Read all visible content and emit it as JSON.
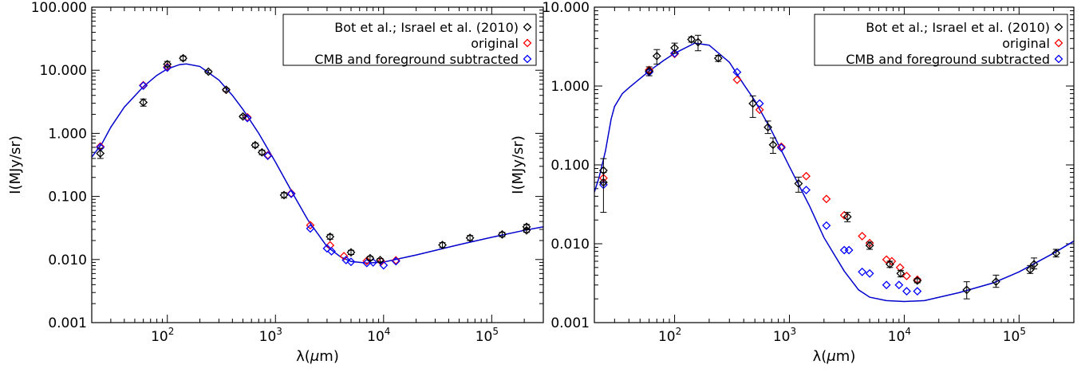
{
  "chart_data": [
    {
      "type": "scatter",
      "xlabel_main": "λ(",
      "xlabel_mu": "μ",
      "xlabel_end": "m)",
      "ylabel": "I(MJy/sr)",
      "xscale": "log",
      "yscale": "log",
      "xlim": [
        20,
        300000
      ],
      "ylim": [
        0.001,
        100
      ],
      "xticks": [
        {
          "base": "10",
          "exp": "2",
          "value": 100
        },
        {
          "base": "10",
          "exp": "3",
          "value": 1000
        },
        {
          "base": "10",
          "exp": "4",
          "value": 10000
        },
        {
          "base": "10",
          "exp": "5",
          "value": 100000
        }
      ],
      "yticks": [
        {
          "label": "0.001",
          "value": 0.001
        },
        {
          "label": "0.010",
          "value": 0.01
        },
        {
          "label": "0.100",
          "value": 0.1
        },
        {
          "label": "1.000",
          "value": 1
        },
        {
          "label": "10.000",
          "value": 10
        },
        {
          "label": "100.000",
          "value": 100
        }
      ],
      "legend_position": "top-right",
      "series": [
        {
          "name": "Bot et al.; Israel et al. (2010)",
          "color": "#000000",
          "marker": "diamond",
          "points": [
            {
              "x": 24,
              "y": 0.48,
              "lo": 0.4,
              "hi": 0.58
            },
            {
              "x": 60,
              "y": 3.1,
              "lo": 2.7,
              "hi": 3.5
            },
            {
              "x": 100,
              "y": 12.5,
              "lo": 11.3,
              "hi": 13.8
            },
            {
              "x": 140,
              "y": 15.5,
              "lo": 14.3,
              "hi": 16.8
            },
            {
              "x": 240,
              "y": 9.5,
              "lo": 9.0,
              "hi": 10.0
            },
            {
              "x": 350,
              "y": 4.9,
              "lo": 4.6,
              "hi": 5.2
            },
            {
              "x": 500,
              "y": 1.85,
              "lo": 1.75,
              "hi": 1.95
            },
            {
              "x": 650,
              "y": 0.65,
              "lo": 0.6,
              "hi": 0.7
            },
            {
              "x": 750,
              "y": 0.5,
              "lo": 0.46,
              "hi": 0.54
            },
            {
              "x": 1200,
              "y": 0.105,
              "lo": 0.095,
              "hi": 0.115
            },
            {
              "x": 3200,
              "y": 0.023,
              "lo": 0.021,
              "hi": 0.025
            },
            {
              "x": 5000,
              "y": 0.013,
              "lo": 0.012,
              "hi": 0.014
            },
            {
              "x": 7500,
              "y": 0.0105,
              "lo": 0.0098,
              "hi": 0.0112
            },
            {
              "x": 9300,
              "y": 0.0098,
              "lo": 0.0092,
              "hi": 0.0104
            },
            {
              "x": 35000,
              "y": 0.017,
              "lo": 0.0155,
              "hi": 0.0185
            },
            {
              "x": 63000,
              "y": 0.022,
              "lo": 0.02,
              "hi": 0.024
            },
            {
              "x": 125000,
              "y": 0.025,
              "lo": 0.023,
              "hi": 0.027
            },
            {
              "x": 210000,
              "y": 0.033,
              "lo": 0.03,
              "hi": 0.036
            },
            {
              "x": 210000,
              "y": 0.029,
              "lo": 0.027,
              "hi": 0.031
            }
          ]
        },
        {
          "name": "original",
          "color": "#ff0000",
          "marker": "diamond",
          "points": [
            {
              "x": 24,
              "y": 0.62
            },
            {
              "x": 60,
              "y": 5.8
            },
            {
              "x": 100,
              "y": 11.3
            },
            {
              "x": 350,
              "y": 4.9
            },
            {
              "x": 550,
              "y": 1.8
            },
            {
              "x": 850,
              "y": 0.45
            },
            {
              "x": 1400,
              "y": 0.112
            },
            {
              "x": 2100,
              "y": 0.035
            },
            {
              "x": 3200,
              "y": 0.0168
            },
            {
              "x": 4300,
              "y": 0.0113
            },
            {
              "x": 7000,
              "y": 0.0095
            },
            {
              "x": 9500,
              "y": 0.0093
            },
            {
              "x": 13000,
              "y": 0.0097
            }
          ]
        },
        {
          "name": "CMB and foreground subtracted",
          "color": "#0000ff",
          "marker": "diamond",
          "points": [
            {
              "x": 24,
              "y": 0.6
            },
            {
              "x": 60,
              "y": 5.7
            },
            {
              "x": 100,
              "y": 11.0
            },
            {
              "x": 550,
              "y": 1.75
            },
            {
              "x": 850,
              "y": 0.44
            },
            {
              "x": 1400,
              "y": 0.11
            },
            {
              "x": 2100,
              "y": 0.031
            },
            {
              "x": 3000,
              "y": 0.015
            },
            {
              "x": 3300,
              "y": 0.0135
            },
            {
              "x": 4500,
              "y": 0.0098
            },
            {
              "x": 5000,
              "y": 0.0092
            },
            {
              "x": 7000,
              "y": 0.0088
            },
            {
              "x": 8000,
              "y": 0.009
            },
            {
              "x": 10000,
              "y": 0.0081
            },
            {
              "x": 13000,
              "y": 0.0094
            }
          ]
        }
      ],
      "model_curve": {
        "color": "#0000cc",
        "points": [
          {
            "x": 20,
            "y": 0.42
          },
          {
            "x": 25,
            "y": 0.7
          },
          {
            "x": 30,
            "y": 1.25
          },
          {
            "x": 40,
            "y": 2.6
          },
          {
            "x": 60,
            "y": 5.5
          },
          {
            "x": 80,
            "y": 8.3
          },
          {
            "x": 100,
            "y": 10.5
          },
          {
            "x": 130,
            "y": 12.3
          },
          {
            "x": 150,
            "y": 12.6
          },
          {
            "x": 200,
            "y": 11.5
          },
          {
            "x": 300,
            "y": 7.0
          },
          {
            "x": 400,
            "y": 4.0
          },
          {
            "x": 500,
            "y": 2.4
          },
          {
            "x": 700,
            "y": 1.0
          },
          {
            "x": 1000,
            "y": 0.35
          },
          {
            "x": 1500,
            "y": 0.1
          },
          {
            "x": 2000,
            "y": 0.042
          },
          {
            "x": 3000,
            "y": 0.016
          },
          {
            "x": 4000,
            "y": 0.011
          },
          {
            "x": 5000,
            "y": 0.0093
          },
          {
            "x": 7000,
            "y": 0.0088
          },
          {
            "x": 10000,
            "y": 0.0091
          },
          {
            "x": 20000,
            "y": 0.0118
          },
          {
            "x": 50000,
            "y": 0.0172
          },
          {
            "x": 100000,
            "y": 0.0225
          },
          {
            "x": 200000,
            "y": 0.029
          },
          {
            "x": 300000,
            "y": 0.033
          }
        ]
      }
    },
    {
      "type": "scatter",
      "xlabel_main": "λ(",
      "xlabel_mu": "μ",
      "xlabel_end": "m)",
      "ylabel": "I(MJy/sr)",
      "xscale": "log",
      "yscale": "log",
      "xlim": [
        20,
        300000
      ],
      "ylim": [
        0.001,
        10
      ],
      "xticks": [
        {
          "base": "10",
          "exp": "2",
          "value": 100
        },
        {
          "base": "10",
          "exp": "3",
          "value": 1000
        },
        {
          "base": "10",
          "exp": "4",
          "value": 10000
        },
        {
          "base": "10",
          "exp": "5",
          "value": 100000
        }
      ],
      "yticks": [
        {
          "label": "0.001",
          "value": 0.001
        },
        {
          "label": "0.010",
          "value": 0.01
        },
        {
          "label": "0.100",
          "value": 0.1
        },
        {
          "label": "1.000",
          "value": 1
        },
        {
          "label": "10.000",
          "value": 10
        }
      ],
      "legend_position": "top-right",
      "series": [
        {
          "name": "Bot et al.; Israel et al. (2010)",
          "color": "#000000",
          "marker": "diamond",
          "points": [
            {
              "x": 24,
              "y": 0.085,
              "lo": 0.06,
              "hi": 0.12
            },
            {
              "x": 24,
              "y": 0.06,
              "lo": 0.025,
              "hi": 0.08
            },
            {
              "x": 60,
              "y": 1.55,
              "lo": 1.35,
              "hi": 1.75
            },
            {
              "x": 70,
              "y": 2.4,
              "lo": 1.9,
              "hi": 2.9
            },
            {
              "x": 100,
              "y": 3.05,
              "lo": 2.6,
              "hi": 3.5
            },
            {
              "x": 140,
              "y": 3.9,
              "lo": 3.6,
              "hi": 4.2
            },
            {
              "x": 160,
              "y": 3.6,
              "lo": 2.8,
              "hi": 4.4
            },
            {
              "x": 240,
              "y": 2.25,
              "lo": 2.05,
              "hi": 2.45
            },
            {
              "x": 480,
              "y": 0.6,
              "lo": 0.4,
              "hi": 0.75
            },
            {
              "x": 650,
              "y": 0.3,
              "lo": 0.25,
              "hi": 0.36
            },
            {
              "x": 720,
              "y": 0.18,
              "lo": 0.14,
              "hi": 0.22
            },
            {
              "x": 1200,
              "y": 0.058,
              "lo": 0.045,
              "hi": 0.07
            },
            {
              "x": 3200,
              "y": 0.022,
              "lo": 0.019,
              "hi": 0.025
            },
            {
              "x": 5000,
              "y": 0.0095,
              "lo": 0.0085,
              "hi": 0.0105
            },
            {
              "x": 7500,
              "y": 0.0055,
              "lo": 0.005,
              "hi": 0.006
            },
            {
              "x": 9300,
              "y": 0.0042,
              "lo": 0.0038,
              "hi": 0.0046
            },
            {
              "x": 13000,
              "y": 0.0034,
              "lo": 0.0032,
              "hi": 0.0036
            },
            {
              "x": 35000,
              "y": 0.0026,
              "lo": 0.002,
              "hi": 0.0033
            },
            {
              "x": 63000,
              "y": 0.0033,
              "lo": 0.0028,
              "hi": 0.004
            },
            {
              "x": 125000,
              "y": 0.0047,
              "lo": 0.0042,
              "hi": 0.0053
            },
            {
              "x": 135000,
              "y": 0.0055,
              "lo": 0.0048,
              "hi": 0.0066
            },
            {
              "x": 210000,
              "y": 0.0076,
              "lo": 0.0068,
              "hi": 0.0085
            }
          ]
        },
        {
          "name": "original",
          "color": "#ff0000",
          "marker": "diamond",
          "points": [
            {
              "x": 24,
              "y": 0.068
            },
            {
              "x": 60,
              "y": 1.6
            },
            {
              "x": 100,
              "y": 2.55
            },
            {
              "x": 350,
              "y": 1.2
            },
            {
              "x": 550,
              "y": 0.5
            },
            {
              "x": 850,
              "y": 0.17
            },
            {
              "x": 1400,
              "y": 0.072
            },
            {
              "x": 2100,
              "y": 0.037
            },
            {
              "x": 3000,
              "y": 0.023
            },
            {
              "x": 4300,
              "y": 0.0125
            },
            {
              "x": 5000,
              "y": 0.0102
            },
            {
              "x": 7000,
              "y": 0.0063
            },
            {
              "x": 7800,
              "y": 0.006
            },
            {
              "x": 9200,
              "y": 0.005
            },
            {
              "x": 10500,
              "y": 0.0039
            },
            {
              "x": 13000,
              "y": 0.0035
            }
          ]
        },
        {
          "name": "CMB and foreground subtracted",
          "color": "#0000ff",
          "marker": "diamond",
          "points": [
            {
              "x": 24,
              "y": 0.056
            },
            {
              "x": 60,
              "y": 1.5
            },
            {
              "x": 100,
              "y": 2.6
            },
            {
              "x": 350,
              "y": 1.5
            },
            {
              "x": 550,
              "y": 0.6
            },
            {
              "x": 850,
              "y": 0.165
            },
            {
              "x": 1400,
              "y": 0.048
            },
            {
              "x": 2100,
              "y": 0.017
            },
            {
              "x": 3000,
              "y": 0.0083
            },
            {
              "x": 3300,
              "y": 0.0083
            },
            {
              "x": 4300,
              "y": 0.0044
            },
            {
              "x": 5000,
              "y": 0.0042
            },
            {
              "x": 7000,
              "y": 0.003
            },
            {
              "x": 9000,
              "y": 0.003
            },
            {
              "x": 10500,
              "y": 0.0025
            },
            {
              "x": 13000,
              "y": 0.0025
            }
          ]
        }
      ],
      "model_curve": {
        "color": "#0000cc",
        "points": [
          {
            "x": 20,
            "y": 0.045
          },
          {
            "x": 22,
            "y": 0.07
          },
          {
            "x": 25,
            "y": 0.15
          },
          {
            "x": 28,
            "y": 0.38
          },
          {
            "x": 30,
            "y": 0.55
          },
          {
            "x": 35,
            "y": 0.8
          },
          {
            "x": 40,
            "y": 0.95
          },
          {
            "x": 60,
            "y": 1.55
          },
          {
            "x": 80,
            "y": 2.1
          },
          {
            "x": 100,
            "y": 2.6
          },
          {
            "x": 150,
            "y": 3.5
          },
          {
            "x": 200,
            "y": 3.3
          },
          {
            "x": 300,
            "y": 2.0
          },
          {
            "x": 400,
            "y": 1.05
          },
          {
            "x": 500,
            "y": 0.65
          },
          {
            "x": 700,
            "y": 0.27
          },
          {
            "x": 1000,
            "y": 0.095
          },
          {
            "x": 1500,
            "y": 0.03
          },
          {
            "x": 2000,
            "y": 0.012
          },
          {
            "x": 3000,
            "y": 0.0045
          },
          {
            "x": 4000,
            "y": 0.0026
          },
          {
            "x": 5000,
            "y": 0.0021
          },
          {
            "x": 7000,
            "y": 0.0019
          },
          {
            "x": 10000,
            "y": 0.00185
          },
          {
            "x": 15000,
            "y": 0.0019
          },
          {
            "x": 30000,
            "y": 0.0024
          },
          {
            "x": 60000,
            "y": 0.0032
          },
          {
            "x": 100000,
            "y": 0.0044
          },
          {
            "x": 200000,
            "y": 0.0076
          },
          {
            "x": 300000,
            "y": 0.0108
          }
        ]
      }
    }
  ]
}
